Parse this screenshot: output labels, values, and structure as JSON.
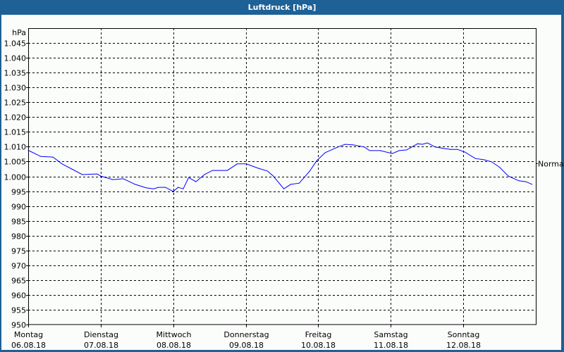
{
  "window": {
    "title": "Luftdruck [hPa]"
  },
  "colors": {
    "title_bar": "#1d6196",
    "series": "#0000ff",
    "grid": "#000000"
  },
  "chart_data": {
    "type": "line",
    "title": "Luftdruck [hPa]",
    "ylabel": "hPa",
    "ylim": [
      950,
      1050
    ],
    "xlim": [
      "06.08.18 00:00",
      "13.08.18 00:00"
    ],
    "grid": true,
    "y_ticks": [
      {
        "value": 950,
        "label": "950"
      },
      {
        "value": 955,
        "label": "955"
      },
      {
        "value": 960,
        "label": "960"
      },
      {
        "value": 965,
        "label": "965"
      },
      {
        "value": 970,
        "label": "970"
      },
      {
        "value": 975,
        "label": "975"
      },
      {
        "value": 980,
        "label": "980"
      },
      {
        "value": 985,
        "label": "985"
      },
      {
        "value": 990,
        "label": "990"
      },
      {
        "value": 995,
        "label": "995"
      },
      {
        "value": 1000,
        "label": "1.000"
      },
      {
        "value": 1005,
        "label": "1.005"
      },
      {
        "value": 1010,
        "label": "1.010"
      },
      {
        "value": 1015,
        "label": "1.015"
      },
      {
        "value": 1020,
        "label": "1.020"
      },
      {
        "value": 1025,
        "label": "1.025"
      },
      {
        "value": 1030,
        "label": "1.030"
      },
      {
        "value": 1035,
        "label": "1.035"
      },
      {
        "value": 1040,
        "label": "1.040"
      },
      {
        "value": 1045,
        "label": "1.045"
      }
    ],
    "x_ticks": [
      {
        "day": "Montag",
        "date": "06.08.18"
      },
      {
        "day": "Dienstag",
        "date": "07.08.18"
      },
      {
        "day": "Mittwoch",
        "date": "08.08.18"
      },
      {
        "day": "Donnerstag",
        "date": "09.08.18"
      },
      {
        "day": "Freitag",
        "date": "10.08.18"
      },
      {
        "day": "Samstag",
        "date": "11.08.18"
      },
      {
        "day": "Sonntag",
        "date": "12.08.18"
      }
    ],
    "reference": {
      "label": "Normal",
      "value": 1004.3
    },
    "series": [
      {
        "color": "#0000ff",
        "points": [
          [
            "06.08.18 00:00",
            1008.8
          ],
          [
            "06.08.18 04:12",
            1006.7
          ],
          [
            "06.08.18 08:12",
            1006.5
          ],
          [
            "06.08.18 11:12",
            1004.2
          ],
          [
            "06.08.18 14:24",
            1002.5
          ],
          [
            "06.08.18 17:54",
            1000.6
          ],
          [
            "06.08.18 22:48",
            1000.8
          ],
          [
            "07.08.18 00:00",
            1000.1
          ],
          [
            "07.08.18 04:00",
            998.9
          ],
          [
            "07.08.18 07:30",
            999.2
          ],
          [
            "07.08.18 11:24",
            997.3
          ],
          [
            "07.08.18 15:06",
            996.1
          ],
          [
            "07.08.18 17:30",
            995.8
          ],
          [
            "07.08.18 19:06",
            996.3
          ],
          [
            "07.08.18 21:24",
            996.3
          ],
          [
            "08.08.18 00:00",
            994.9
          ],
          [
            "08.08.18 01:36",
            996.3
          ],
          [
            "08.08.18 03:18",
            995.8
          ],
          [
            "08.08.18 05:06",
            999.6
          ],
          [
            "08.08.18 07:30",
            998.2
          ],
          [
            "08.08.18 10:18",
            1000.6
          ],
          [
            "08.08.18 13:00",
            1002.0
          ],
          [
            "08.08.18 17:54",
            1002.0
          ],
          [
            "08.08.18 21:12",
            1004.2
          ],
          [
            "09.08.18 00:12",
            1004.2
          ],
          [
            "09.08.18 04:12",
            1002.7
          ],
          [
            "09.08.18 07:12",
            1001.8
          ],
          [
            "09.08.18 09:06",
            1000.1
          ],
          [
            "09.08.18 12:36",
            995.8
          ],
          [
            "09.08.18 14:54",
            997.3
          ],
          [
            "09.08.18 17:42",
            997.7
          ],
          [
            "09.08.18 21:12",
            1001.8
          ],
          [
            "09.08.18 23:30",
            1005.3
          ],
          [
            "10.08.18 02:18",
            1008.0
          ],
          [
            "10.08.18 06:30",
            1009.9
          ],
          [
            "10.08.18 08:54",
            1010.8
          ],
          [
            "10.08.18 11:42",
            1010.6
          ],
          [
            "10.08.18 15:12",
            1009.9
          ],
          [
            "10.08.18 17:00",
            1008.7
          ],
          [
            "10.08.18 20:30",
            1008.7
          ],
          [
            "11.08.18 00:30",
            1007.7
          ],
          [
            "11.08.18 02:48",
            1008.7
          ],
          [
            "11.08.18 05:12",
            1008.9
          ],
          [
            "11.08.18 08:54",
            1011.0
          ],
          [
            "11.08.18 10:30",
            1010.8
          ],
          [
            "11.08.18 12:06",
            1011.3
          ],
          [
            "11.08.18 14:42",
            1009.9
          ],
          [
            "11.08.18 17:30",
            1009.4
          ],
          [
            "11.08.18 19:48",
            1009.1
          ],
          [
            "11.08.18 22:06",
            1009.1
          ],
          [
            "12.08.18 00:30",
            1008.2
          ],
          [
            "12.08.18 04:00",
            1006.0
          ],
          [
            "12.08.18 06:48",
            1005.6
          ],
          [
            "12.08.18 09:24",
            1004.9
          ],
          [
            "12.08.18 12:06",
            1003.0
          ],
          [
            "12.08.18 14:54",
            1000.1
          ],
          [
            "12.08.18 18:24",
            998.5
          ],
          [
            "12.08.18 20:42",
            998.2
          ],
          [
            "12.08.18 22:48",
            997.3
          ]
        ]
      }
    ]
  }
}
